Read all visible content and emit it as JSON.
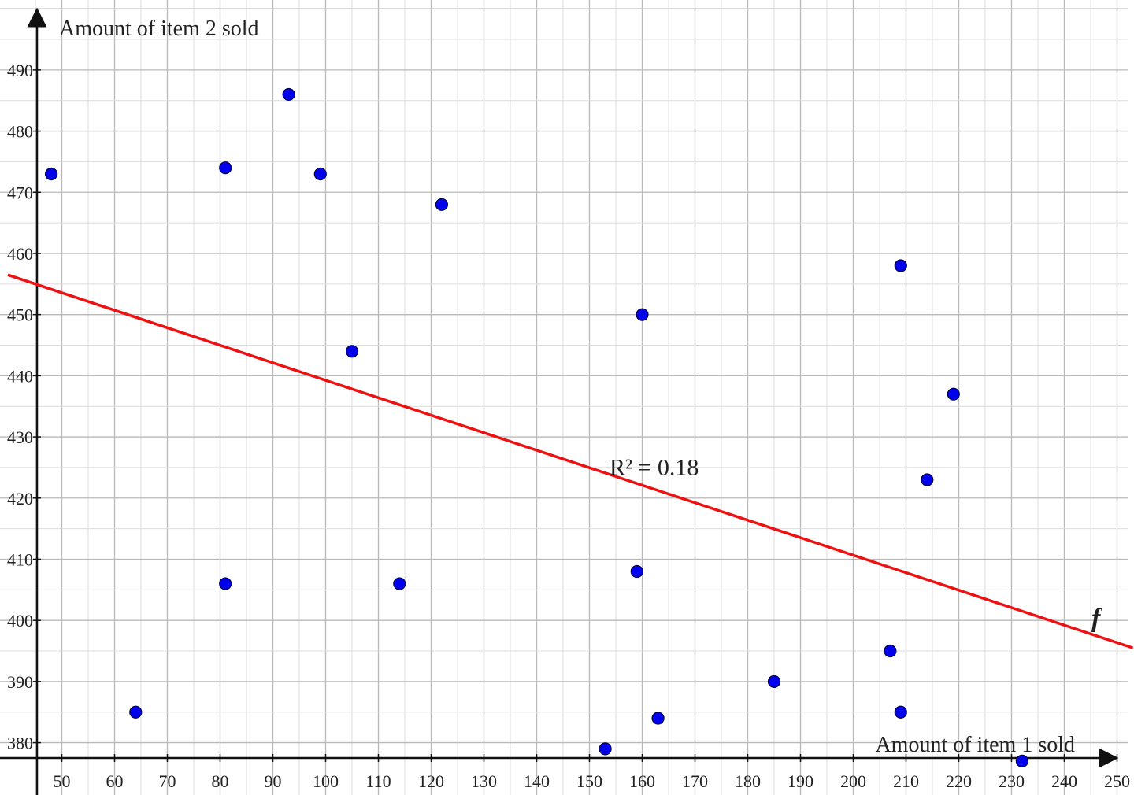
{
  "chart_data": {
    "type": "scatter",
    "xlabel": "Amount of item 1 sold",
    "ylabel": "Amount of item 2 sold",
    "xlim": [
      45,
      253
    ],
    "ylim": [
      377.5,
      495
    ],
    "x_ticks": [
      50,
      60,
      70,
      80,
      90,
      100,
      110,
      120,
      130,
      140,
      150,
      160,
      170,
      180,
      190,
      200,
      210,
      220,
      230,
      240,
      250
    ],
    "y_ticks": [
      380,
      390,
      400,
      410,
      420,
      430,
      440,
      450,
      460,
      470,
      480,
      490
    ],
    "grid": true,
    "minor_grid_step": 5,
    "point_color": "#0000ee",
    "line_color": "#ee1111",
    "points": [
      {
        "x": 48,
        "y": 473
      },
      {
        "x": 64,
        "y": 385
      },
      {
        "x": 81,
        "y": 474
      },
      {
        "x": 81,
        "y": 406
      },
      {
        "x": 93,
        "y": 486
      },
      {
        "x": 99,
        "y": 473
      },
      {
        "x": 105,
        "y": 444
      },
      {
        "x": 114,
        "y": 406
      },
      {
        "x": 122,
        "y": 468
      },
      {
        "x": 153,
        "y": 379
      },
      {
        "x": 159,
        "y": 408
      },
      {
        "x": 160,
        "y": 450
      },
      {
        "x": 163,
        "y": 384
      },
      {
        "x": 185,
        "y": 390
      },
      {
        "x": 207,
        "y": 395
      },
      {
        "x": 209,
        "y": 385
      },
      {
        "x": 209,
        "y": 458
      },
      {
        "x": 214,
        "y": 423
      },
      {
        "x": 219,
        "y": 437
      },
      {
        "x": 232,
        "y": 377
      }
    ],
    "trendline": {
      "name": "f",
      "x1": 45,
      "y1": 455,
      "x2": 253,
      "y2": 395.5
    },
    "annotation": {
      "text": "R² = 0.18",
      "x": 155,
      "y": 423
    }
  }
}
